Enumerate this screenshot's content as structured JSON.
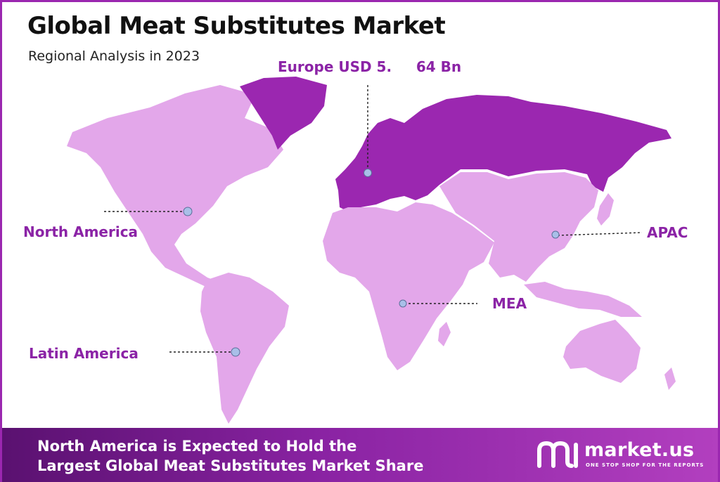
{
  "header": {
    "title": "Global Meat Substitutes Market",
    "subtitle": "Regional Analysis in 2023"
  },
  "regions": {
    "europe": {
      "label": "Europe USD 5.     64 Bn",
      "name": "Europe",
      "value": "USD 5.64 Bn"
    },
    "north_america": {
      "label": "North America"
    },
    "latin_america": {
      "label": "Latin America"
    },
    "mea": {
      "label": "MEA"
    },
    "apac": {
      "label": "APAC"
    }
  },
  "footer": {
    "line1": "North America is Expected to Hold the",
    "line2": "Largest Global Meat Substitutes Market Share"
  },
  "brand": {
    "name": "market.us",
    "tagline": "ONE STOP SHOP FOR THE REPORTS",
    "logo_icon": "market-us-logo-icon"
  },
  "colors": {
    "highlight_region": "#9b27b0",
    "other_regions": "#e3a7ea",
    "label_text": "#8b23a6",
    "border": "#9b27b0",
    "marker": "#a9bfe8"
  }
}
